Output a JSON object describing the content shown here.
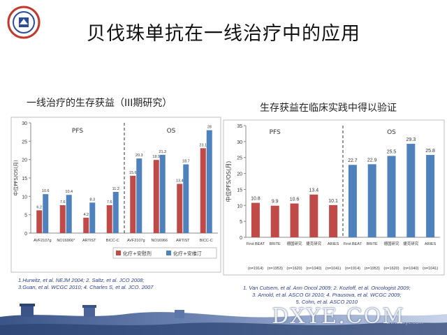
{
  "slide": {
    "title": "贝伐珠单抗在一线治疗中的应用",
    "watermark": "DXYE.COM",
    "watermark_small": "www.dxye.com"
  },
  "left": {
    "subtitle": "一线治疗的生存获益（III期研究）",
    "refs": [
      "1.Hurwitz, et al. NEJM 2004; 2. Saltz, et al. JCO 2008;",
      "3.Guan, et al. WCGC 2010; 4. Charles S, et al. JCO. 2007"
    ]
  },
  "right": {
    "subtitle": "生存获益在临床实践中得以验证",
    "refs": [
      "1. Van Cutsem, et al. Ann Oncol 2009; 2. Kozloff, et al. Oncologist 2009;",
      "3. Arnold, et al. ASCO GI 2010; 4. Prausova, et al. WCGC 2009;",
      "5. Cohn, et al. ASCO 2010"
    ]
  },
  "chart_data": [
    {
      "type": "bar",
      "ylabel": "中位PFS/OS(月)",
      "ylim": [
        0,
        30
      ],
      "yticks": [
        "0",
        "5",
        "10",
        "15",
        "20",
        "25",
        "30"
      ],
      "grid": false,
      "legend_position": "bottom-right",
      "groups": [
        "PFS",
        "OS"
      ],
      "categories": [
        "AVF2107g",
        "NO16966*",
        "ARTIST",
        "BICC-C",
        "AVF2107g",
        "NO16966",
        "ARTIST",
        "BICC-C"
      ],
      "series": [
        {
          "name": "化疗+安慰剂",
          "color": "#be4b48",
          "values": [
            6.2,
            7.6,
            4.2,
            7.6,
            15.6,
            19.9,
            13.4,
            23.1
          ],
          "labels": [
            "6.2",
            "7.6",
            "4.2",
            "7.6",
            "15.6",
            "19.9",
            "13.4",
            "23.1"
          ]
        },
        {
          "name": "化疗+安维汀",
          "color": "#4f81bd",
          "values": [
            10.6,
            10.4,
            8.3,
            11.2,
            20.3,
            21.3,
            18.7,
            28
          ],
          "labels": [
            "10.6",
            "10.4",
            "8.3",
            "11.2",
            "20.3",
            "21.3",
            "18.7",
            "28"
          ]
        }
      ]
    },
    {
      "type": "bar",
      "ylabel": "中位PFS/OS(月)",
      "ylim": [
        0,
        35
      ],
      "yticks": [
        "0",
        "5",
        "10",
        "15",
        "20",
        "25",
        "30",
        "35"
      ],
      "grid": false,
      "groups": [
        "PFS",
        "OS"
      ],
      "categories": [
        "First BEAT",
        "BRiTE",
        "德国研究",
        "捷克研究",
        "ARIES",
        "First BEAT",
        "BRiTE",
        "德国研究",
        "捷克研究",
        "ARIES"
      ],
      "n_labels": [
        "(n=1914)",
        "(n=1953)",
        "(n=1620)",
        "(n=1040)",
        "(n=1041)",
        "(n=1914)",
        "(n=1953)",
        "(n=1620)",
        "(n=1040)",
        "(n=1041)"
      ],
      "values": [
        10.8,
        9.9,
        10.6,
        13.4,
        10.1,
        22.7,
        22.9,
        25.5,
        29.3,
        25.8
      ],
      "labels": [
        "10.8",
        "9.9",
        "10.6",
        "13.4",
        "10.1",
        "22.7",
        "22.9",
        "25.5",
        "29.3",
        "25.8"
      ],
      "colors": {
        "pfs": "#be4b48",
        "os": "#4f81bd"
      }
    }
  ]
}
